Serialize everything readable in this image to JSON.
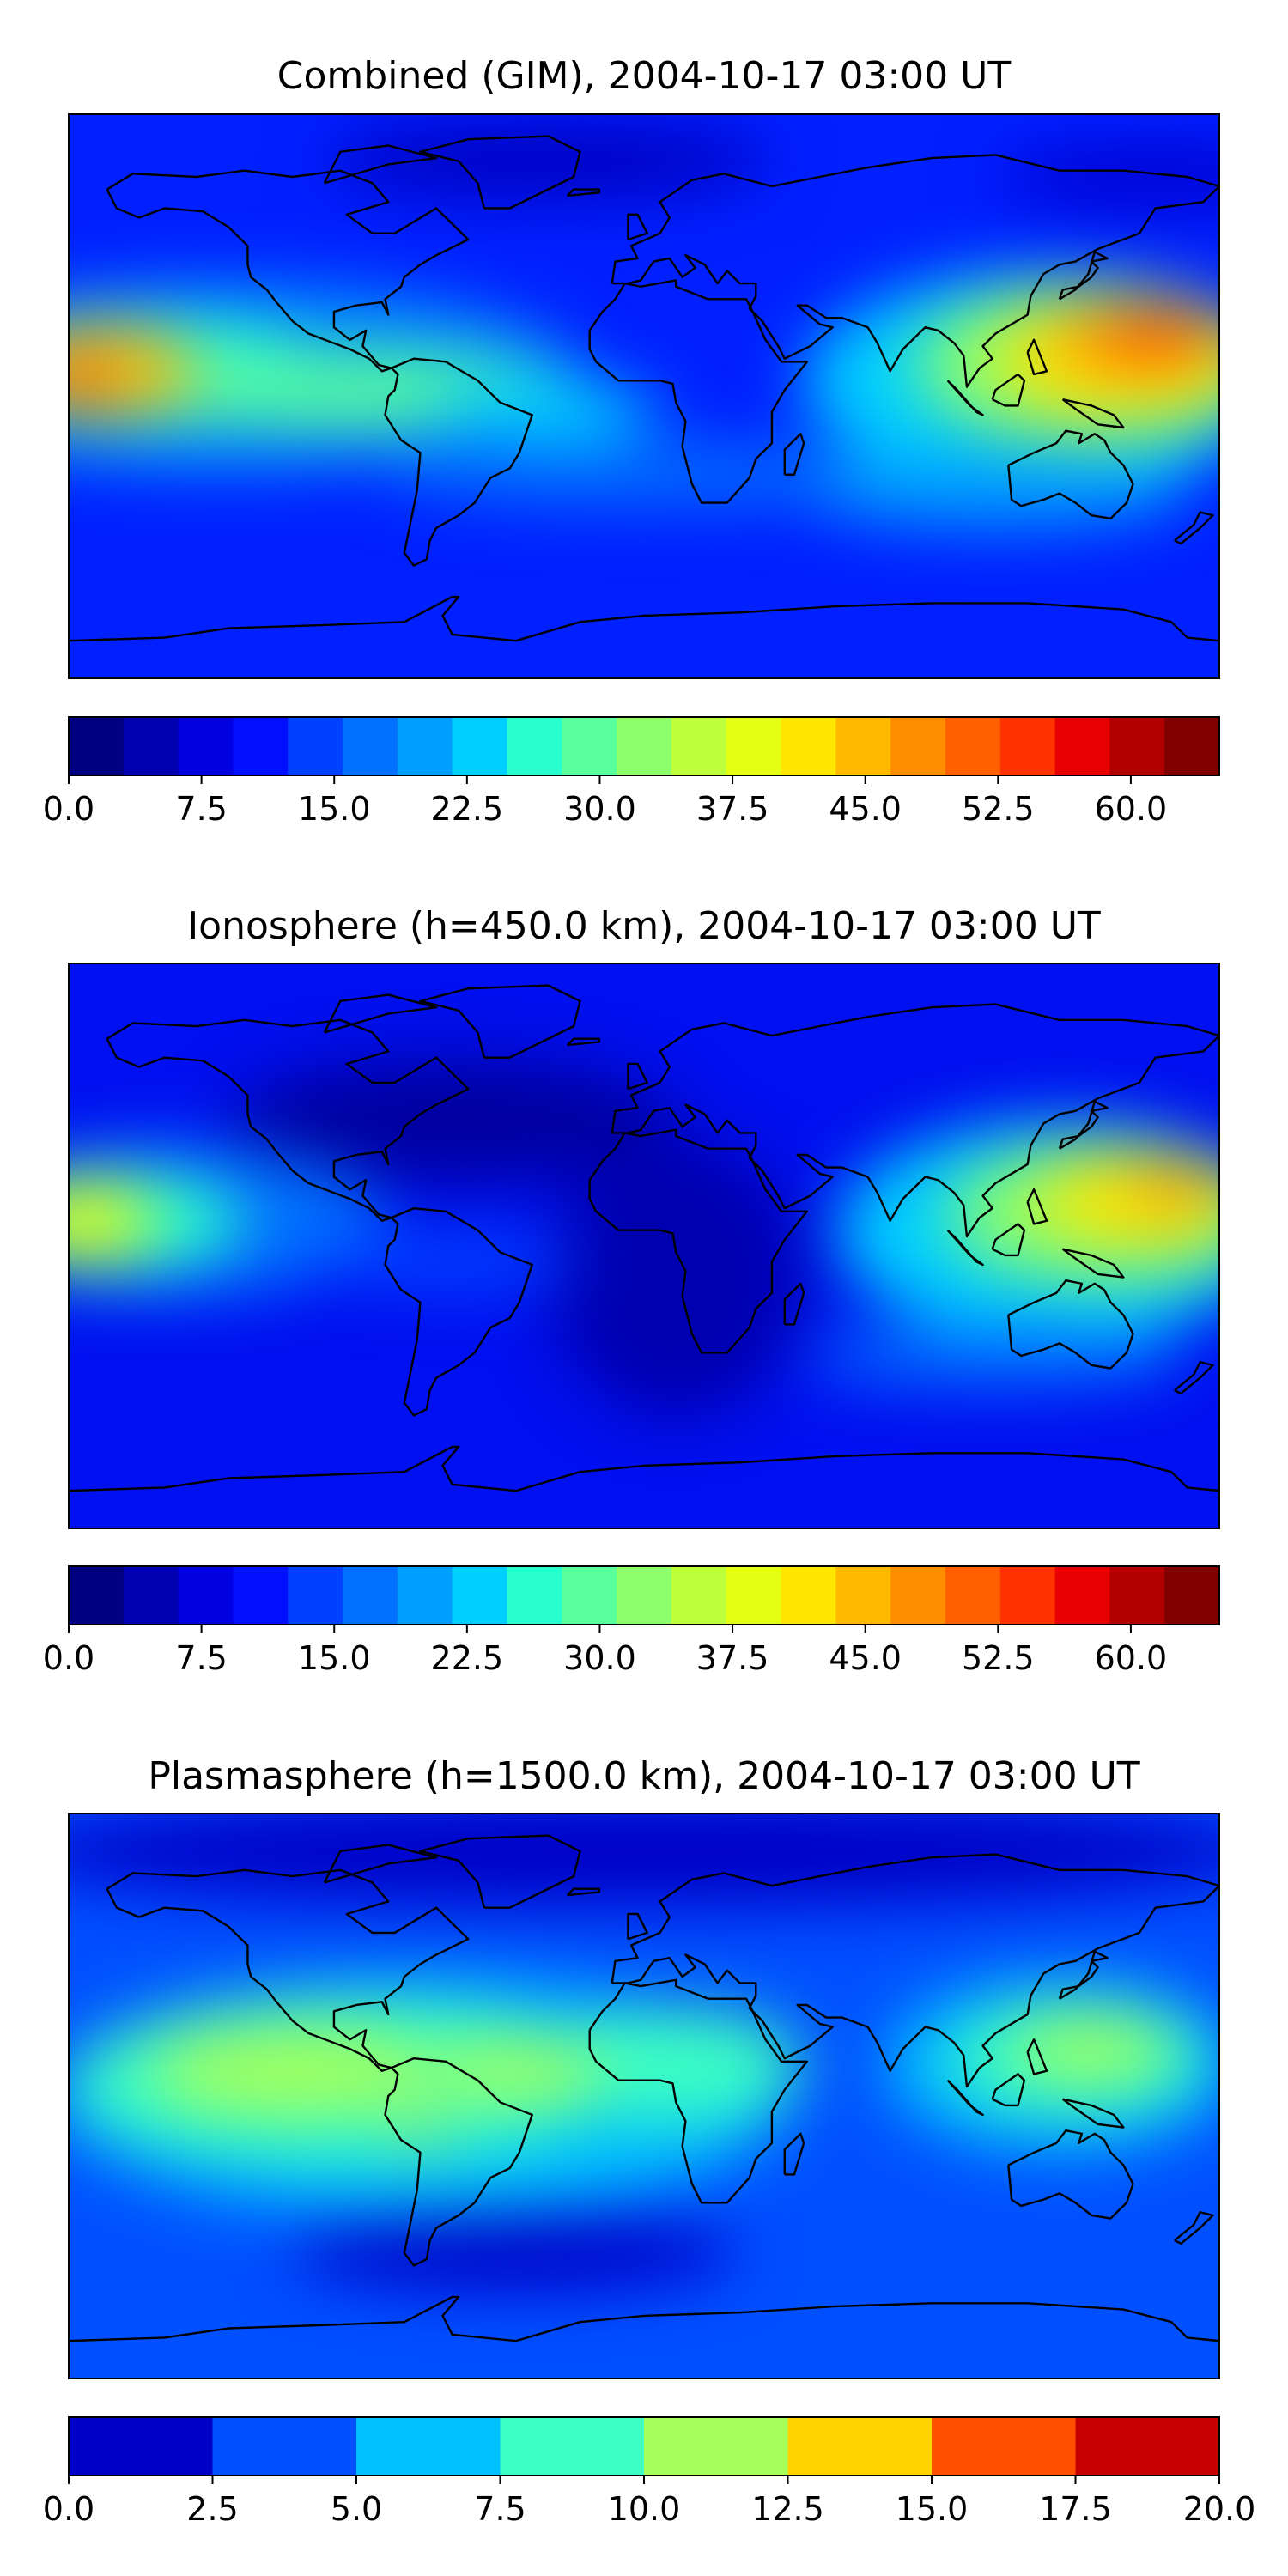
{
  "panels": [
    {
      "title": "Combined (GIM), 2004-10-17 03:00 UT",
      "colorbar": {
        "levels": [
          "#000080",
          "#0000b0",
          "#0000e0",
          "#0010ff",
          "#0040ff",
          "#0070ff",
          "#009fff",
          "#00d0ff",
          "#29ffce",
          "#5aff9d",
          "#8cff6a",
          "#bdff3a",
          "#e4ff14",
          "#ffe600",
          "#ffb900",
          "#ff8d00",
          "#ff6100",
          "#ff3300",
          "#e60000",
          "#b20000",
          "#800000"
        ],
        "ticks": [
          "0.0",
          "7.5",
          "15.0",
          "22.5",
          "30.0",
          "37.5",
          "45.0",
          "52.5",
          "60.0"
        ],
        "tick_values": [
          0,
          7.5,
          15,
          22.5,
          30,
          37.5,
          45,
          52.5,
          60
        ],
        "vmin": 0,
        "vmax": 65
      },
      "field": {
        "background": "#0020ff",
        "blobs": [
          {
            "lon": -30,
            "lat": 75,
            "rlon": 70,
            "rlat": 12,
            "color": "#0000c0"
          },
          {
            "lon": 160,
            "lat": 70,
            "rlon": 50,
            "rlat": 10,
            "color": "#0000d0"
          },
          {
            "lon": -130,
            "lat": 6,
            "rlon": 110,
            "rlat": 30,
            "color": "#0090ff"
          },
          {
            "lon": -160,
            "lat": 8,
            "rlon": 60,
            "rlat": 18,
            "color": "#29ffce"
          },
          {
            "lon": -90,
            "lat": 2,
            "rlon": 70,
            "rlat": 12,
            "color": "#5aff9d"
          },
          {
            "lon": -30,
            "lat": -5,
            "rlon": 35,
            "rlat": 10,
            "color": "#00d0ff"
          },
          {
            "lon": -170,
            "lat": 8,
            "rlon": 30,
            "rlat": 14,
            "color": "#ffb900"
          },
          {
            "lon": -178,
            "lat": 5,
            "rlon": 12,
            "rlat": 8,
            "color": "#ff6100"
          },
          {
            "lon": 125,
            "lat": 5,
            "rlon": 75,
            "rlat": 35,
            "color": "#00d0ff"
          },
          {
            "lon": 140,
            "lat": 10,
            "rlon": 55,
            "rlat": 25,
            "color": "#8cff6a"
          },
          {
            "lon": 150,
            "lat": 12,
            "rlon": 40,
            "rlat": 18,
            "color": "#ffe600"
          },
          {
            "lon": 155,
            "lat": 18,
            "rlon": 28,
            "rlat": 10,
            "color": "#ff8d00"
          },
          {
            "lon": 160,
            "lat": 20,
            "rlon": 14,
            "rlat": 6,
            "color": "#ff3300"
          },
          {
            "lon": 0,
            "lat": -25,
            "rlon": 80,
            "rlat": 10,
            "color": "#0070ff"
          },
          {
            "lon": 110,
            "lat": -30,
            "rlon": 60,
            "rlat": 12,
            "color": "#009fff"
          }
        ]
      }
    },
    {
      "title": "Ionosphere  (h=450.0 km), 2004-10-17 03:00 UT",
      "colorbar": {
        "levels": [
          "#000080",
          "#0000b0",
          "#0000e0",
          "#0010ff",
          "#0040ff",
          "#0070ff",
          "#009fff",
          "#00d0ff",
          "#29ffce",
          "#5aff9d",
          "#8cff6a",
          "#bdff3a",
          "#e4ff14",
          "#ffe600",
          "#ffb900",
          "#ff8d00",
          "#ff6100",
          "#ff3300",
          "#e60000",
          "#b20000",
          "#800000"
        ],
        "ticks": [
          "0.0",
          "7.5",
          "15.0",
          "22.5",
          "30.0",
          "37.5",
          "45.0",
          "52.5",
          "60.0"
        ],
        "tick_values": [
          0,
          7.5,
          15,
          22.5,
          30,
          37.5,
          45,
          52.5,
          60
        ],
        "vmin": 0,
        "vmax": 65
      },
      "field": {
        "background": "#0010f0",
        "blobs": [
          {
            "lon": -60,
            "lat": 40,
            "rlon": 70,
            "rlat": 20,
            "color": "#0000a0"
          },
          {
            "lon": 10,
            "lat": -10,
            "rlon": 40,
            "rlat": 45,
            "color": "#0000b0"
          },
          {
            "lon": -150,
            "lat": 8,
            "rlon": 70,
            "rlat": 25,
            "color": "#0070ff"
          },
          {
            "lon": -165,
            "lat": 8,
            "rlon": 40,
            "rlat": 16,
            "color": "#29ffce"
          },
          {
            "lon": -175,
            "lat": 8,
            "rlon": 22,
            "rlat": 12,
            "color": "#e4ff14"
          },
          {
            "lon": -60,
            "lat": -5,
            "rlon": 40,
            "rlat": 10,
            "color": "#0040ff"
          },
          {
            "lon": 130,
            "lat": 5,
            "rlon": 70,
            "rlat": 35,
            "color": "#00d0ff"
          },
          {
            "lon": 145,
            "lat": 10,
            "rlon": 50,
            "rlat": 22,
            "color": "#8cff6a"
          },
          {
            "lon": 155,
            "lat": 15,
            "rlon": 32,
            "rlat": 14,
            "color": "#ffe600"
          },
          {
            "lon": 165,
            "lat": 18,
            "rlon": 14,
            "rlat": 6,
            "color": "#ff8d00"
          },
          {
            "lon": 110,
            "lat": -35,
            "rlon": 60,
            "rlat": 10,
            "color": "#0070ff"
          }
        ]
      }
    },
    {
      "title": "Plasmasphere (h=1500.0 km), 2004-10-17 03:00 UT",
      "colorbar": {
        "levels": [
          "#0000c8",
          "#0050ff",
          "#00c0ff",
          "#3cffc3",
          "#a6ff5a",
          "#ffd200",
          "#ff5000",
          "#c80000"
        ],
        "ticks": [
          "0.0",
          "2.5",
          "5.0",
          "7.5",
          "10.0",
          "12.5",
          "15.0",
          "17.5",
          "20.0"
        ],
        "tick_values": [
          0,
          2.5,
          5,
          7.5,
          10,
          12.5,
          15,
          17.5,
          20
        ],
        "vmin": 0,
        "vmax": 20
      },
      "field": {
        "background": "#0050ff",
        "blobs": [
          {
            "lon": 0,
            "lat": 78,
            "rlon": 200,
            "rlat": 18,
            "color": "#0000c8"
          },
          {
            "lon": -40,
            "lat": -50,
            "rlon": 70,
            "rlat": 12,
            "color": "#0000c8"
          },
          {
            "lon": -70,
            "lat": 0,
            "rlon": 115,
            "rlat": 38,
            "color": "#00c0ff"
          },
          {
            "lon": 130,
            "lat": 10,
            "rlon": 55,
            "rlat": 28,
            "color": "#00c0ff"
          },
          {
            "lon": -95,
            "lat": 5,
            "rlon": 85,
            "rlat": 26,
            "color": "#3cffc3"
          },
          {
            "lon": 10,
            "lat": 10,
            "rlon": 40,
            "rlat": 18,
            "color": "#3cffc3"
          },
          {
            "lon": 135,
            "lat": 12,
            "rlon": 40,
            "rlat": 18,
            "color": "#3cffc3"
          },
          {
            "lon": -110,
            "lat": 8,
            "rlon": 45,
            "rlat": 14,
            "color": "#a6ff5a"
          },
          {
            "lon": -40,
            "lat": 8,
            "rlon": 28,
            "rlat": 10,
            "color": "#a6ff5a"
          },
          {
            "lon": 140,
            "lat": 15,
            "rlon": 25,
            "rlat": 10,
            "color": "#a6ff5a"
          },
          {
            "lon": -70,
            "lat": -10,
            "rlon": 6,
            "rlat": 4,
            "color": "#ffd200"
          }
        ]
      }
    }
  ]
}
